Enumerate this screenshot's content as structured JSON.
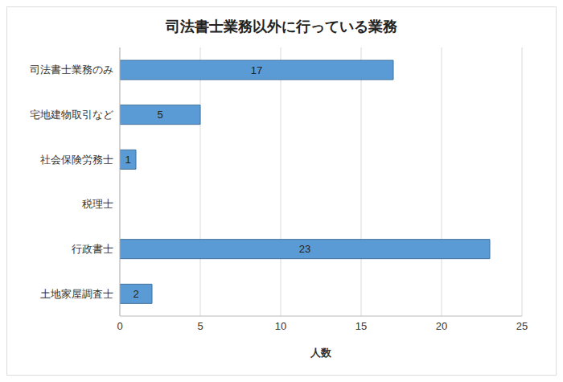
{
  "chart_data": {
    "type": "bar",
    "title": "司法書士業務以外に行っている業務",
    "x_label": "人数",
    "orientation": "horizontal",
    "categories": [
      "司法書士業務のみ",
      "宅地建物取引など",
      "社会保険労務士",
      "税理士",
      "行政書士",
      "土地家屋調査士"
    ],
    "values": [
      17,
      5,
      1,
      0,
      23,
      2
    ],
    "color": "#5b9bd5",
    "xlim": [
      0,
      25
    ],
    "xticks": [
      0,
      5,
      10,
      15,
      20,
      25
    ],
    "grid": true,
    "data_labels": true
  }
}
